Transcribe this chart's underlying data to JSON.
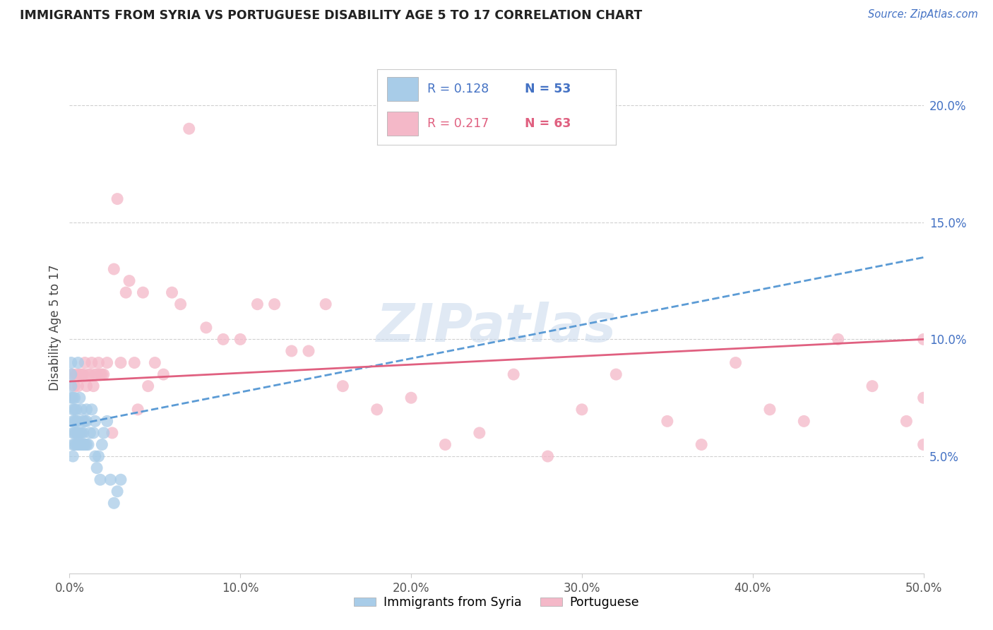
{
  "title": "IMMIGRANTS FROM SYRIA VS PORTUGUESE DISABILITY AGE 5 TO 17 CORRELATION CHART",
  "source": "Source: ZipAtlas.com",
  "ylabel": "Disability Age 5 to 17",
  "xlim": [
    0.0,
    0.5
  ],
  "ylim": [
    0.0,
    0.21
  ],
  "xticks": [
    0.0,
    0.1,
    0.2,
    0.3,
    0.4,
    0.5
  ],
  "ytick_vals": [
    0.05,
    0.1,
    0.15,
    0.2
  ],
  "ytick_labels_right": [
    "5.0%",
    "10.0%",
    "15.0%",
    "20.0%"
  ],
  "xtick_labels": [
    "0.0%",
    "10.0%",
    "20.0%",
    "30.0%",
    "40.0%",
    "50.0%"
  ],
  "series1_label": "Immigrants from Syria",
  "series1_R": "0.128",
  "series1_N": "53",
  "series1_color": "#a8cce8",
  "series1_line_color": "#5b9bd5",
  "series2_label": "Portuguese",
  "series2_R": "0.217",
  "series2_N": "63",
  "series2_color": "#f4b8c8",
  "series2_line_color": "#e06080",
  "watermark": "ZIPatlas",
  "syria_x": [
    0.001,
    0.001,
    0.001,
    0.001,
    0.002,
    0.002,
    0.002,
    0.002,
    0.002,
    0.002,
    0.003,
    0.003,
    0.003,
    0.003,
    0.003,
    0.004,
    0.004,
    0.004,
    0.004,
    0.005,
    0.005,
    0.005,
    0.005,
    0.006,
    0.006,
    0.006,
    0.007,
    0.007,
    0.007,
    0.008,
    0.008,
    0.008,
    0.009,
    0.009,
    0.01,
    0.01,
    0.01,
    0.011,
    0.012,
    0.013,
    0.014,
    0.015,
    0.015,
    0.016,
    0.017,
    0.018,
    0.019,
    0.02,
    0.022,
    0.024,
    0.026,
    0.028,
    0.03
  ],
  "syria_y": [
    0.075,
    0.08,
    0.085,
    0.09,
    0.06,
    0.065,
    0.07,
    0.075,
    0.055,
    0.05,
    0.055,
    0.06,
    0.065,
    0.07,
    0.075,
    0.055,
    0.06,
    0.065,
    0.07,
    0.055,
    0.06,
    0.065,
    0.09,
    0.055,
    0.06,
    0.075,
    0.055,
    0.06,
    0.07,
    0.055,
    0.06,
    0.065,
    0.055,
    0.065,
    0.055,
    0.065,
    0.07,
    0.055,
    0.06,
    0.07,
    0.06,
    0.05,
    0.065,
    0.045,
    0.05,
    0.04,
    0.055,
    0.06,
    0.065,
    0.04,
    0.03,
    0.035,
    0.04
  ],
  "portuguese_x": [
    0.002,
    0.003,
    0.004,
    0.005,
    0.006,
    0.007,
    0.008,
    0.009,
    0.01,
    0.011,
    0.012,
    0.013,
    0.014,
    0.015,
    0.016,
    0.017,
    0.018,
    0.019,
    0.02,
    0.022,
    0.025,
    0.026,
    0.028,
    0.03,
    0.033,
    0.035,
    0.038,
    0.04,
    0.043,
    0.046,
    0.05,
    0.055,
    0.06,
    0.065,
    0.07,
    0.08,
    0.09,
    0.1,
    0.11,
    0.12,
    0.13,
    0.14,
    0.15,
    0.16,
    0.18,
    0.2,
    0.22,
    0.24,
    0.26,
    0.28,
    0.3,
    0.32,
    0.35,
    0.37,
    0.39,
    0.41,
    0.43,
    0.45,
    0.47,
    0.49,
    0.5,
    0.5,
    0.5
  ],
  "portuguese_y": [
    0.085,
    0.08,
    0.085,
    0.08,
    0.085,
    0.085,
    0.085,
    0.09,
    0.08,
    0.085,
    0.085,
    0.09,
    0.08,
    0.085,
    0.085,
    0.09,
    0.085,
    0.085,
    0.085,
    0.09,
    0.06,
    0.13,
    0.16,
    0.09,
    0.12,
    0.125,
    0.09,
    0.07,
    0.12,
    0.08,
    0.09,
    0.085,
    0.12,
    0.115,
    0.19,
    0.105,
    0.1,
    0.1,
    0.115,
    0.115,
    0.095,
    0.095,
    0.115,
    0.08,
    0.07,
    0.075,
    0.055,
    0.06,
    0.085,
    0.05,
    0.07,
    0.085,
    0.065,
    0.055,
    0.09,
    0.07,
    0.065,
    0.1,
    0.08,
    0.065,
    0.055,
    0.1,
    0.075
  ],
  "syria_trendline_x": [
    0.0,
    0.5
  ],
  "syria_trendline_y": [
    0.063,
    0.135
  ],
  "portuguese_trendline_x": [
    0.0,
    0.5
  ],
  "portuguese_trendline_y": [
    0.082,
    0.1
  ]
}
